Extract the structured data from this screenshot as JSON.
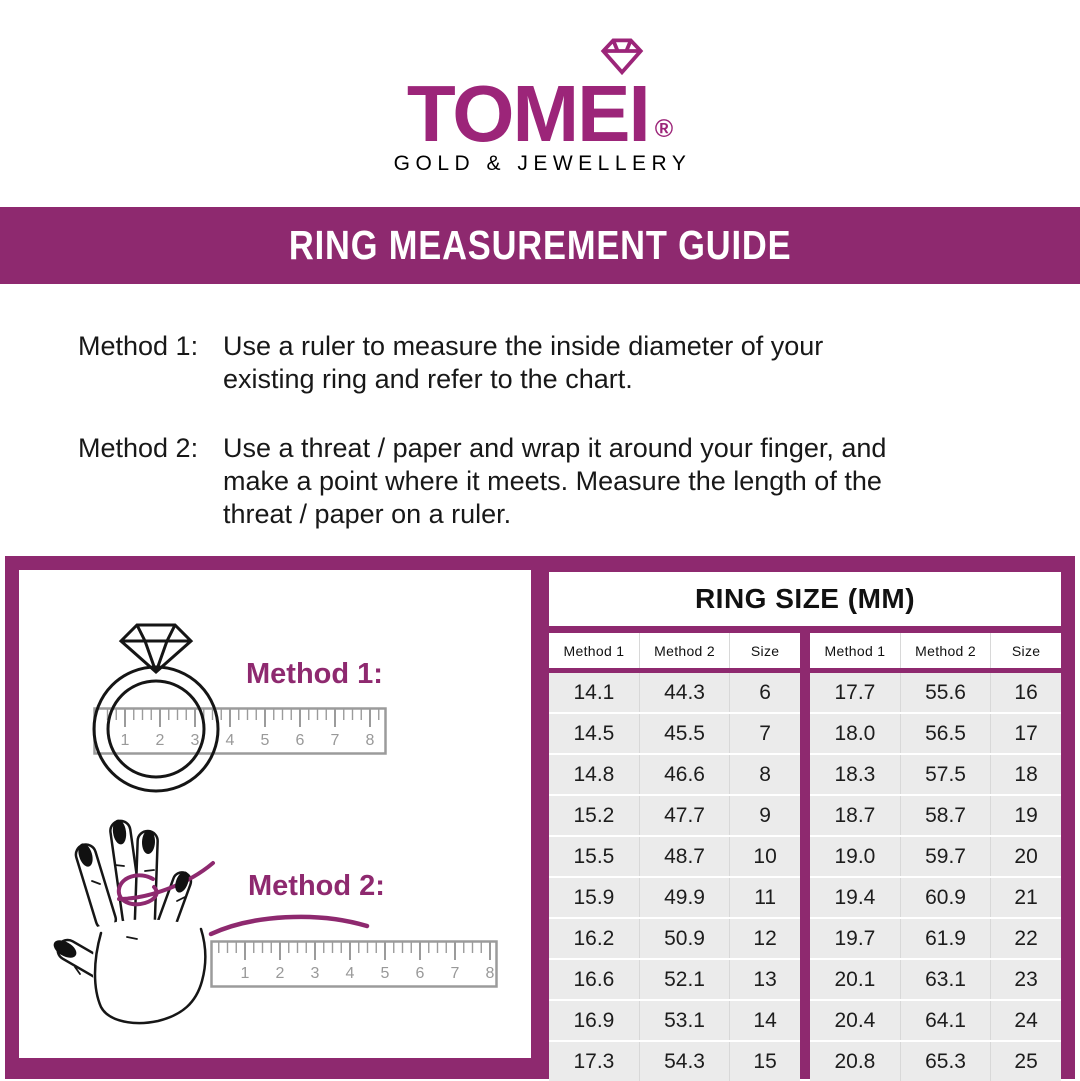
{
  "logo": {
    "name": "TOMEI",
    "registered_mark": "®",
    "tagline": "GOLD & JEWELLERY"
  },
  "banner": {
    "title": "RING MEASUREMENT GUIDE"
  },
  "instructions": [
    {
      "label": "Method 1:",
      "lines": [
        "Use a ruler to measure the inside diameter of your",
        "existing ring and refer to the chart."
      ]
    },
    {
      "label": "Method 2:",
      "lines": [
        "Use a threat / paper and wrap it around your finger, and",
        "make a point where it meets. Measure the length of the",
        "threat / paper on a ruler."
      ]
    }
  ],
  "illustration_panel": {
    "method1_label": "Method 1:",
    "method2_label": "Method 2:",
    "ruler1_numbers": [
      "1",
      "2",
      "3",
      "4",
      "5",
      "6",
      "7",
      "8"
    ],
    "ruler2_numbers": [
      "1",
      "2",
      "3",
      "4",
      "5",
      "6",
      "7",
      "8"
    ]
  },
  "size_table": {
    "title": "RING SIZE (MM)",
    "headers": [
      "Method 1",
      "Method 2",
      "Size"
    ],
    "groups": [
      {
        "rows": [
          [
            "14.1",
            "44.3",
            "6"
          ],
          [
            "14.5",
            "45.5",
            "7"
          ],
          [
            "14.8",
            "46.6",
            "8"
          ],
          [
            "15.2",
            "47.7",
            "9"
          ],
          [
            "15.5",
            "48.7",
            "10"
          ],
          [
            "15.9",
            "49.9",
            "11"
          ],
          [
            "16.2",
            "50.9",
            "12"
          ],
          [
            "16.6",
            "52.1",
            "13"
          ],
          [
            "16.9",
            "53.1",
            "14"
          ],
          [
            "17.3",
            "54.3",
            "15"
          ]
        ]
      },
      {
        "rows": [
          [
            "17.7",
            "55.6",
            "16"
          ],
          [
            "18.0",
            "56.5",
            "17"
          ],
          [
            "18.3",
            "57.5",
            "18"
          ],
          [
            "18.7",
            "58.7",
            "19"
          ],
          [
            "19.0",
            "59.7",
            "20"
          ],
          [
            "19.4",
            "60.9",
            "21"
          ],
          [
            "19.7",
            "61.9",
            "22"
          ],
          [
            "20.1",
            "63.1",
            "23"
          ],
          [
            "20.4",
            "64.1",
            "24"
          ],
          [
            "20.8",
            "65.3",
            "25"
          ]
        ]
      }
    ]
  },
  "colors": {
    "brand_purple": "#9C2579",
    "accent_purple": "#8E296F",
    "cell_gray": "#EBEBEB",
    "ruler_gray": "#9B9B9B"
  }
}
